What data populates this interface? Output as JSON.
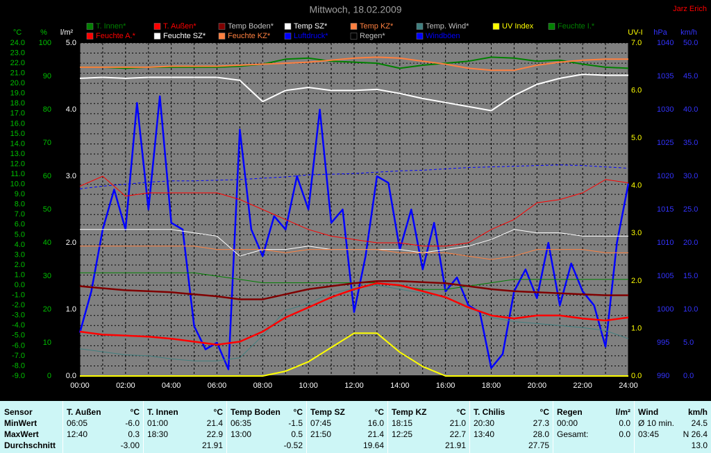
{
  "author": "Jarz Erich",
  "chart_data": {
    "type": "line",
    "title": "Mittwoch, 18.02.2009",
    "xlim": [
      0,
      24
    ],
    "xticks": [
      {
        "value": 0,
        "label": "00:00"
      },
      {
        "value": 2,
        "label": "02:00"
      },
      {
        "value": 4,
        "label": "04:00"
      },
      {
        "value": 6,
        "label": "06:00"
      },
      {
        "value": 8,
        "label": "08:00"
      },
      {
        "value": 10,
        "label": "10:00"
      },
      {
        "value": 12,
        "label": "12:00"
      },
      {
        "value": 14,
        "label": "14:00"
      },
      {
        "value": 16,
        "label": "16:00"
      },
      {
        "value": 18,
        "label": "18:00"
      },
      {
        "value": 20,
        "label": "20:00"
      },
      {
        "value": 22,
        "label": "22:00"
      },
      {
        "value": 24,
        "label": "24:00"
      }
    ],
    "x": [
      0,
      1,
      2,
      3,
      4,
      5,
      6,
      7,
      8,
      9,
      10,
      11,
      12,
      13,
      14,
      15,
      16,
      17,
      18,
      19,
      20,
      21,
      22,
      23,
      24
    ],
    "grid": true,
    "ylabel": "°C",
    "ylim": [
      -9,
      24
    ],
    "yticks": [
      {
        "value": 24,
        "label": "24.0"
      },
      {
        "value": 23,
        "label": "23.0"
      },
      {
        "value": 22,
        "label": "22.0"
      },
      {
        "value": 21,
        "label": "21.0"
      },
      {
        "value": 20,
        "label": "20.0"
      },
      {
        "value": 19,
        "label": "19.0"
      },
      {
        "value": 18,
        "label": "18.0"
      },
      {
        "value": 17,
        "label": "17.0"
      },
      {
        "value": 16,
        "label": "16.0"
      },
      {
        "value": 15,
        "label": "15.0"
      },
      {
        "value": 14,
        "label": "14.0"
      },
      {
        "value": 13,
        "label": "13.0"
      },
      {
        "value": 12,
        "label": "12.0"
      },
      {
        "value": 11,
        "label": "11.0"
      },
      {
        "value": 10,
        "label": "10.0"
      },
      {
        "value": 9,
        "label": "9.0"
      },
      {
        "value": 8,
        "label": "8.0"
      },
      {
        "value": 7,
        "label": "7.0"
      },
      {
        "value": 6,
        "label": "6.0"
      },
      {
        "value": 5,
        "label": "5.0"
      },
      {
        "value": 4,
        "label": "4.0"
      },
      {
        "value": 3,
        "label": "3.0"
      },
      {
        "value": 2,
        "label": "2.0"
      },
      {
        "value": 1,
        "label": "1.0"
      },
      {
        "value": 0,
        "label": "0.0"
      },
      {
        "value": -1,
        "label": "-1.0"
      },
      {
        "value": -2,
        "label": "-2.0"
      },
      {
        "value": -3,
        "label": "-3.0"
      },
      {
        "value": -4,
        "label": "-4.0"
      },
      {
        "value": -5,
        "label": "-5.0"
      },
      {
        "value": -6,
        "label": "-6.0"
      },
      {
        "value": -7,
        "label": "-7.0"
      },
      {
        "value": -8,
        "label": "-8.0"
      },
      {
        "value": -9,
        "label": "-9.0"
      }
    ],
    "y2label": "%",
    "y2lim": [
      0,
      100
    ],
    "y2ticks": [
      100,
      90,
      80,
      70,
      60,
      50,
      40,
      30,
      20,
      10,
      0
    ],
    "y3label": "l/m²",
    "y3lim": [
      0,
      5
    ],
    "y3ticks": [
      {
        "value": 5,
        "label": "5.0"
      },
      {
        "value": 4,
        "label": "4.0"
      },
      {
        "value": 3,
        "label": "3.0"
      },
      {
        "value": 2,
        "label": "2.0"
      },
      {
        "value": 1,
        "label": "1.0"
      },
      {
        "value": 0,
        "label": "0.0"
      }
    ],
    "y4label": "UV-I",
    "y4lim": [
      0,
      7
    ],
    "y4ticks": [
      {
        "value": 7,
        "label": "7.0"
      },
      {
        "value": 6,
        "label": "6.0"
      },
      {
        "value": 5,
        "label": "5.0"
      },
      {
        "value": 4,
        "label": "4.0"
      },
      {
        "value": 3,
        "label": "3.0"
      },
      {
        "value": 2,
        "label": "2.0"
      },
      {
        "value": 1,
        "label": "1.0"
      },
      {
        "value": 0,
        "label": "0.0"
      }
    ],
    "y5label": "hPa",
    "y5lim": [
      990,
      1040
    ],
    "y5ticks": [
      1040,
      1035,
      1030,
      1025,
      1020,
      1015,
      1010,
      1005,
      1000,
      995,
      990
    ],
    "y6label": "km/h",
    "y6lim": [
      0,
      50
    ],
    "y6ticks": [
      {
        "value": 50,
        "label": "50.0"
      },
      {
        "value": 45,
        "label": "45.0"
      },
      {
        "value": 40,
        "label": "40.0"
      },
      {
        "value": 35,
        "label": "35.0"
      },
      {
        "value": 30,
        "label": "30.0"
      },
      {
        "value": 25,
        "label": "25.0"
      },
      {
        "value": 20,
        "label": "20.0"
      },
      {
        "value": 15,
        "label": "15.0"
      },
      {
        "value": 10,
        "label": "10.0"
      },
      {
        "value": 5,
        "label": "5.0"
      },
      {
        "value": 0,
        "label": "0.0"
      }
    ],
    "series": [
      {
        "name": "T. Innen*",
        "color": "#008000",
        "axis": "y",
        "width": 2,
        "values": [
          21.6,
          21.6,
          21.5,
          21.6,
          21.6,
          21.6,
          21.6,
          21.7,
          21.9,
          22.4,
          22.5,
          22.2,
          22.1,
          22.0,
          21.5,
          21.8,
          22.0,
          22.2,
          22.6,
          22.5,
          22.2,
          22.3,
          21.9,
          21.6,
          21.5
        ]
      },
      {
        "name": "T. Außen*",
        "color": "#ff0000",
        "axis": "y",
        "width": 2.5,
        "values": [
          -4.6,
          -4.9,
          -5.0,
          -5.1,
          -5.3,
          -5.6,
          -5.9,
          -5.6,
          -4.6,
          -3.2,
          -2.2,
          -1.2,
          -0.4,
          0.2,
          0.0,
          -0.6,
          -1.2,
          -2.2,
          -3.0,
          -3.3,
          -3.0,
          -3.0,
          -3.3,
          -3.5,
          -3.2
        ]
      },
      {
        "name": "Temp Boden*",
        "color": "#800000",
        "axis": "y",
        "width": 2.5,
        "values": [
          -0.1,
          -0.3,
          -0.5,
          -0.6,
          -0.7,
          -0.9,
          -1.1,
          -1.4,
          -1.4,
          -0.9,
          -0.4,
          -0.1,
          0.2,
          0.4,
          0.4,
          0.3,
          0.2,
          -0.1,
          -0.4,
          -0.6,
          -0.7,
          -0.8,
          -0.9,
          -1.0,
          -1.0
        ]
      },
      {
        "name": "Temp SZ*",
        "color": "#ffffff",
        "axis": "y",
        "width": 2,
        "values": [
          20.5,
          20.6,
          20.5,
          20.6,
          20.6,
          20.6,
          20.6,
          20.3,
          18.2,
          19.3,
          19.6,
          19.3,
          19.3,
          19.4,
          19.0,
          18.5,
          18.1,
          17.7,
          17.3,
          18.8,
          19.9,
          20.5,
          20.9,
          20.8,
          20.8
        ]
      },
      {
        "name": "Temp KZ*",
        "color": "#ff8040",
        "axis": "y",
        "width": 2,
        "values": [
          21.6,
          21.6,
          21.6,
          21.6,
          21.7,
          21.7,
          21.7,
          21.8,
          21.9,
          22.0,
          22.1,
          22.3,
          22.5,
          22.6,
          22.5,
          22.2,
          21.9,
          21.5,
          21.3,
          21.3,
          21.8,
          22.1,
          22.3,
          22.4,
          22.4
        ]
      },
      {
        "name": "Temp. Wind*",
        "color": "#408080",
        "axis": "y",
        "width": 1,
        "values": [
          -6.3,
          -6.6,
          -6.9,
          -7.0,
          -7.3,
          -7.5,
          -7.5,
          -7.2,
          -5.0,
          -2.5,
          -1.8,
          -0.8,
          -0.3,
          0.0,
          -0.4,
          -0.8,
          -1.2,
          -2.1,
          -3.2,
          -3.6,
          -3.8,
          -4.0,
          -4.2,
          -4.5,
          -5.3
        ]
      },
      {
        "name": "UV Index",
        "color": "#ffff00",
        "axis": "y4",
        "width": 2,
        "values": [
          0,
          0,
          0,
          0,
          0,
          0,
          0,
          0,
          0,
          0.1,
          0.3,
          0.6,
          0.9,
          0.9,
          0.5,
          0.2,
          0,
          0,
          0,
          0,
          0,
          0,
          0,
          0,
          0
        ]
      },
      {
        "name": "Feuchte I.*",
        "color": "#008000",
        "axis": "y2",
        "width": 1,
        "values": [
          31,
          31,
          31,
          31,
          31,
          31,
          30,
          29,
          28,
          28,
          28,
          28,
          28,
          28,
          27,
          26,
          26,
          27,
          28,
          29,
          29,
          29,
          29,
          29,
          29
        ]
      },
      {
        "name": "Feuchte A.*",
        "color": "#ff0000",
        "axis": "y2",
        "width": 1,
        "values": [
          57,
          60,
          54,
          55,
          55,
          55,
          55,
          53,
          50,
          47,
          44,
          42,
          41,
          40,
          40,
          39,
          39,
          40,
          44,
          47,
          52,
          53,
          55,
          59,
          58
        ]
      },
      {
        "name": "Feuchte SZ*",
        "color": "#ffffff",
        "axis": "y2",
        "width": 1,
        "values": [
          44,
          44,
          44,
          44,
          44,
          43,
          42,
          36,
          38,
          38,
          39,
          38,
          38,
          38,
          38,
          37,
          38,
          39,
          41,
          44,
          43,
          43,
          42,
          42,
          42
        ]
      },
      {
        "name": "Feuchte KZ*",
        "color": "#ff8040",
        "axis": "y2",
        "width": 1,
        "values": [
          39,
          39,
          39,
          39,
          39,
          39,
          38,
          38,
          38,
          37,
          38,
          38,
          38,
          38,
          37,
          37,
          37,
          36,
          35,
          36,
          38,
          38,
          38,
          37,
          37
        ]
      },
      {
        "name": "Luftdruck*",
        "color": "#0000ff",
        "axis": "y5",
        "width": 1,
        "dashed": true,
        "values": [
          1018.1,
          1018.5,
          1018.8,
          1019.1,
          1019.3,
          1019.3,
          1019.4,
          1019.5,
          1019.7,
          1019.9,
          1020.2,
          1020.3,
          1020.4,
          1020.6,
          1020.8,
          1020.9,
          1021.1,
          1021.3,
          1021.4,
          1021.5,
          1021.6,
          1021.7,
          1021.6,
          1021.4,
          1021.2
        ]
      },
      {
        "name": "Regen*",
        "color": "#000000",
        "axis": "y3",
        "width": 2,
        "values": [
          0,
          0,
          0,
          0,
          0,
          0,
          0,
          0,
          0,
          0,
          0,
          0,
          0,
          0,
          0,
          0,
          0,
          0,
          0,
          0,
          0,
          0,
          0,
          0,
          0
        ]
      },
      {
        "name": "Windböen",
        "color": "#0000ff",
        "axis": "y6",
        "width": 2.5,
        "x": [
          0,
          0.5,
          1,
          1.5,
          2,
          2.5,
          3,
          3.5,
          4,
          4.5,
          5,
          5.5,
          6,
          6.5,
          7,
          7.5,
          8,
          8.5,
          9,
          9.5,
          10,
          10.5,
          11,
          11.5,
          12,
          12.5,
          13,
          13.5,
          14,
          14.5,
          15,
          15.5,
          16,
          16.5,
          17,
          17.5,
          18,
          18.5,
          19,
          19.5,
          20,
          20.5,
          21,
          21.5,
          22,
          22.5,
          23,
          23.5,
          24
        ],
        "values": [
          6.5,
          12.7,
          22,
          28,
          22,
          41,
          25,
          42,
          23,
          22,
          7.5,
          4,
          5,
          1,
          37,
          22,
          18,
          24,
          22,
          30,
          25,
          40,
          23,
          25,
          9.6,
          18,
          30,
          29,
          19,
          25,
          16,
          23,
          12.7,
          14.8,
          10.6,
          9.6,
          1.2,
          3.3,
          12.7,
          16,
          11.7,
          20,
          10.6,
          16.9,
          12.7,
          10.6,
          4.4,
          20,
          28.9
        ]
      }
    ]
  },
  "table": {
    "columns": [
      [
        "Sensor"
      ],
      [
        "T. Außen",
        "°C"
      ],
      [
        "T. Innen",
        "°C"
      ],
      [
        "Temp Boden",
        "°C"
      ],
      [
        "Temp SZ",
        "°C"
      ],
      [
        "Temp KZ",
        "°C"
      ],
      [
        "T. Chilis",
        "°C"
      ],
      [
        "Regen",
        "l/m²"
      ],
      [
        "Wind",
        "km/h"
      ]
    ],
    "rows": [
      {
        "label": "MinWert",
        "cells": [
          [
            "06:05",
            "-6.0"
          ],
          [
            "01:00",
            "21.4"
          ],
          [
            "06:35",
            "-1.5"
          ],
          [
            "07:45",
            "16.0"
          ],
          [
            "18:15",
            "21.0"
          ],
          [
            "20:30",
            "27.3"
          ],
          [
            "00:00",
            "0.0"
          ],
          [
            "Ø 10 min.",
            "24.5"
          ]
        ]
      },
      {
        "label": "MaxWert",
        "cells": [
          [
            "12:40",
            "0.3"
          ],
          [
            "18:30",
            "22.9"
          ],
          [
            "13:00",
            "0.5"
          ],
          [
            "21:50",
            "21.4"
          ],
          [
            "12:25",
            "22.7"
          ],
          [
            "13:40",
            "28.0"
          ],
          [
            "Gesamt:",
            "0.0"
          ],
          [
            "03:45",
            "N 26.4"
          ]
        ]
      },
      {
        "label": "Durchschnitt",
        "cells": [
          [
            "-3.00"
          ],
          [
            "21.91"
          ],
          [
            "-0.52"
          ],
          [
            "19.64"
          ],
          [
            "21.91"
          ],
          [
            "27.75"
          ],
          [],
          [
            "13.0"
          ]
        ]
      }
    ]
  }
}
